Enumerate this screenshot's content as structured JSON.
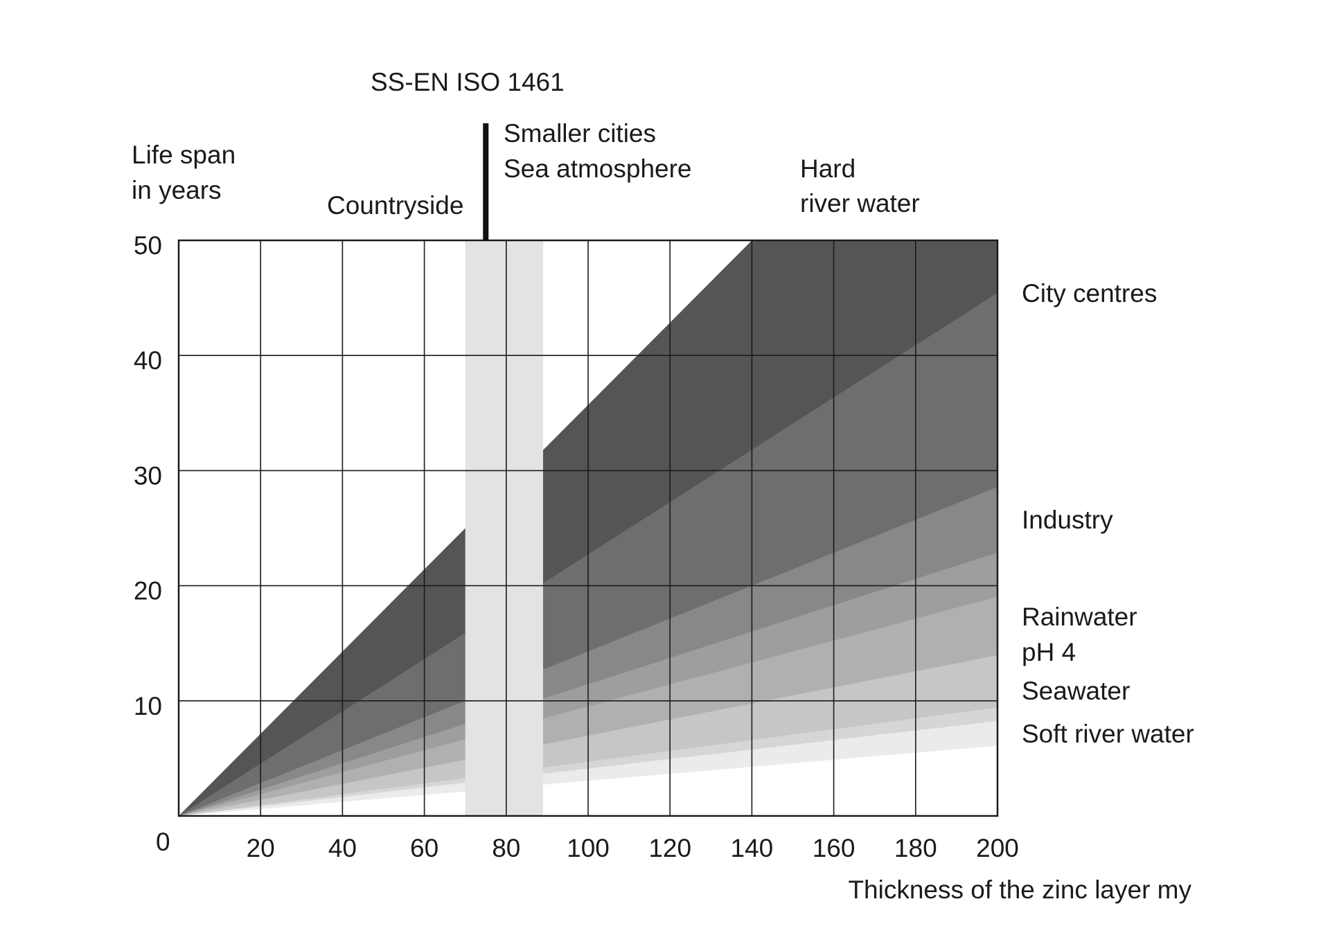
{
  "chart_data": {
    "type": "area",
    "title": "SS-EN ISO 1461",
    "xlabel": "Thickness of the zinc layer my",
    "ylabel_lines": [
      "Life span",
      "in years"
    ],
    "zero_label": "0",
    "xlim": [
      0,
      200
    ],
    "ylim": [
      0,
      50
    ],
    "x_ticks": [
      20,
      40,
      60,
      80,
      100,
      120,
      140,
      160,
      180,
      200
    ],
    "y_ticks": [
      10,
      20,
      30,
      40,
      50
    ],
    "grid": true,
    "reference_band": {
      "x": [
        70,
        89
      ],
      "color": "#e3e3e3"
    },
    "reference_marker": {
      "x": 75
    },
    "series": [
      {
        "name": "Countryside",
        "color": "#555555",
        "low_slope": 0.2272,
        "high_slope": 0.3571
      },
      {
        "name": "Smaller cities Sea atmosphere",
        "color": "#6e6e6e",
        "low_slope": 0.1429,
        "high_slope": 0.2381
      },
      {
        "name": "Hard river water",
        "color": "#888888",
        "low_slope": 0.1144,
        "high_slope": 0.1889
      },
      {
        "name": "City centres",
        "color": "#9e9e9e",
        "low_slope": 0.0952,
        "high_slope": 0.1714
      },
      {
        "name": "Industry",
        "color": "#b0b0b0",
        "low_slope": 0.0698,
        "high_slope": 0.1381
      },
      {
        "name": "Rainwater pH 4",
        "color": "#c6c6c6",
        "low_slope": 0.0471,
        "high_slope": 0.081
      },
      {
        "name": "Seawater",
        "color": "#d6d6d6",
        "low_slope": 0.0411,
        "high_slope": 0.059
      },
      {
        "name": "Soft river water",
        "color": "#ebebeb",
        "low_slope": 0.0305,
        "high_slope": 0.041
      }
    ]
  },
  "labels": {
    "countryside": "Countryside",
    "smaller_cities": "Smaller cities",
    "sea_atmosphere": "Sea atmosphere",
    "hard": "Hard",
    "river_water": "river water",
    "city_centres": "City centres",
    "industry": "Industry",
    "rainwater": "Rainwater",
    "ph4": "pH 4",
    "seawater": "Seawater",
    "soft_river_water": "Soft river water"
  }
}
